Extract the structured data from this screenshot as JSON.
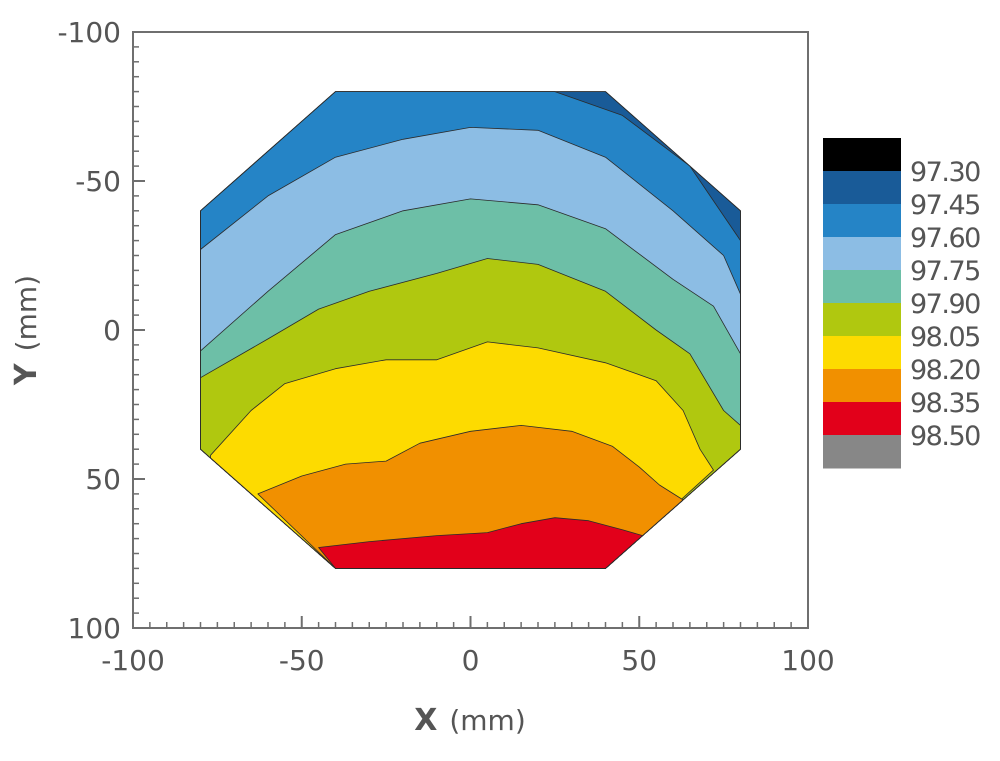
{
  "chart_data": {
    "type": "heatmap",
    "subtype": "filled-contour",
    "xlabel": "X",
    "xlabel_unit": "(mm)",
    "ylabel": "Y",
    "ylabel_unit": "(mm)",
    "xlim": [
      -100,
      100
    ],
    "ylim": [
      -100,
      100
    ],
    "y_axis_inverted": true,
    "x_ticks": [
      -100,
      -50,
      0,
      50,
      100
    ],
    "y_ticks": [
      -100,
      -50,
      0,
      50,
      100
    ],
    "x_tick_labels": [
      "-100",
      "-50",
      "0",
      "50",
      "100"
    ],
    "y_tick_labels": [
      "-100",
      "-50",
      "0",
      "50",
      "100"
    ],
    "minor_tick_step": 5,
    "grid": false,
    "legend_position": "right",
    "colorbar_levels": [
      "97.30",
      "97.45",
      "97.60",
      "97.75",
      "97.90",
      "98.05",
      "98.20",
      "98.35",
      "98.50"
    ],
    "colorbar_colors": [
      "#000000",
      "#195b98",
      "#2584c6",
      "#8cbde4",
      "#6dbfa7",
      "#b0c80f",
      "#fddb00",
      "#f19000",
      "#e2001a",
      "#878787"
    ],
    "wafer_outline": [
      [
        -40,
        -80
      ],
      [
        40,
        -80
      ],
      [
        80,
        -40
      ],
      [
        80,
        40
      ],
      [
        40,
        80
      ],
      [
        -40,
        80
      ],
      [
        -80,
        40
      ],
      [
        -80,
        -40
      ]
    ],
    "bands": [
      {
        "color": "#195b98",
        "points": [
          [
            -40,
            -80
          ],
          [
            40,
            -80
          ],
          [
            80,
            -40
          ],
          [
            80,
            40
          ],
          [
            40,
            80
          ],
          [
            -40,
            80
          ],
          [
            -80,
            40
          ],
          [
            -80,
            -40
          ]
        ]
      },
      {
        "color": "#2584c6",
        "points": [
          [
            -40,
            -80
          ],
          [
            25,
            -80
          ],
          [
            45,
            -72
          ],
          [
            65,
            -55
          ],
          [
            80,
            -30
          ],
          [
            80,
            40
          ],
          [
            40,
            80
          ],
          [
            -40,
            80
          ],
          [
            -80,
            40
          ],
          [
            -80,
            -40
          ]
        ]
      },
      {
        "color": "#8cbde4",
        "points": [
          [
            -80,
            -27
          ],
          [
            -60,
            -45
          ],
          [
            -40,
            -58
          ],
          [
            -20,
            -64
          ],
          [
            0,
            -68
          ],
          [
            20,
            -67
          ],
          [
            40,
            -58
          ],
          [
            60,
            -40
          ],
          [
            75,
            -25
          ],
          [
            80,
            -12
          ],
          [
            80,
            40
          ],
          [
            40,
            80
          ],
          [
            -40,
            80
          ],
          [
            -80,
            40
          ]
        ]
      },
      {
        "color": "#6dbfa7",
        "points": [
          [
            -80,
            7
          ],
          [
            -60,
            -13
          ],
          [
            -40,
            -32
          ],
          [
            -20,
            -40
          ],
          [
            0,
            -44
          ],
          [
            20,
            -42
          ],
          [
            40,
            -34
          ],
          [
            60,
            -17
          ],
          [
            72,
            -8
          ],
          [
            80,
            8
          ],
          [
            80,
            40
          ],
          [
            40,
            80
          ],
          [
            -40,
            80
          ],
          [
            -80,
            40
          ]
        ]
      },
      {
        "color": "#b0c80f",
        "points": [
          [
            -80,
            16
          ],
          [
            -60,
            3
          ],
          [
            -45,
            -7
          ],
          [
            -30,
            -13
          ],
          [
            -10,
            -19
          ],
          [
            5,
            -24
          ],
          [
            20,
            -22
          ],
          [
            40,
            -13
          ],
          [
            55,
            0
          ],
          [
            65,
            8
          ],
          [
            75,
            27
          ],
          [
            80,
            32
          ],
          [
            80,
            40
          ],
          [
            40,
            80
          ],
          [
            -40,
            80
          ],
          [
            -80,
            40
          ]
        ]
      },
      {
        "color": "#fddb00",
        "points": [
          [
            -77,
            42
          ],
          [
            -65,
            27
          ],
          [
            -55,
            18
          ],
          [
            -40,
            13
          ],
          [
            -25,
            10
          ],
          [
            -10,
            10
          ],
          [
            5,
            4
          ],
          [
            20,
            6
          ],
          [
            40,
            11
          ],
          [
            55,
            17
          ],
          [
            63,
            27
          ],
          [
            68,
            40
          ],
          [
            72,
            47
          ],
          [
            40,
            80
          ],
          [
            -40,
            80
          ],
          [
            -77,
            43
          ]
        ]
      },
      {
        "color": "#f19000",
        "points": [
          [
            -63,
            55
          ],
          [
            -50,
            49
          ],
          [
            -37,
            45
          ],
          [
            -25,
            44
          ],
          [
            -15,
            38
          ],
          [
            0,
            34
          ],
          [
            15,
            32
          ],
          [
            30,
            34
          ],
          [
            42,
            39
          ],
          [
            50,
            46
          ],
          [
            56,
            52
          ],
          [
            63,
            57
          ],
          [
            40,
            80
          ],
          [
            -40,
            80
          ]
        ]
      },
      {
        "color": "#e2001a",
        "points": [
          [
            -45,
            73
          ],
          [
            -30,
            71
          ],
          [
            -10,
            69
          ],
          [
            5,
            68
          ],
          [
            15,
            65
          ],
          [
            25,
            63
          ],
          [
            35,
            64
          ],
          [
            45,
            67
          ],
          [
            51,
            69
          ],
          [
            40,
            80
          ],
          [
            -40,
            80
          ]
        ]
      }
    ]
  }
}
